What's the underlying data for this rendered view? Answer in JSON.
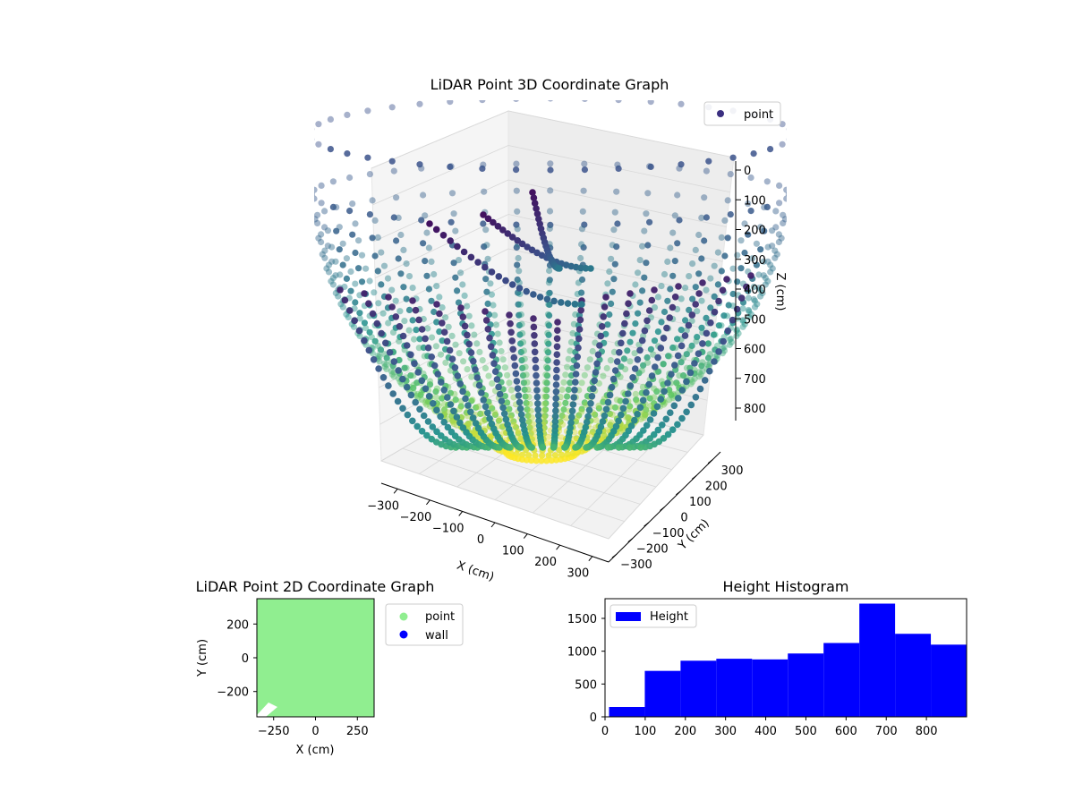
{
  "chart_data": [
    {
      "type": "scatter",
      "title": "LiDAR Point 3D Coordinate Graph",
      "xlabel": "X (cm)",
      "ylabel": "Y (cm)",
      "zlabel": "Z (cm)",
      "x_ticks": [
        "−300",
        "−200",
        "−100",
        "0",
        "100",
        "200",
        "300"
      ],
      "y_ticks": [
        "−300",
        "−200",
        "−100",
        "0",
        "100",
        "200",
        "300"
      ],
      "z_ticks": [
        "0",
        "100",
        "200",
        "300",
        "400",
        "500",
        "600",
        "700",
        "800"
      ],
      "xlim": [
        -350,
        350
      ],
      "ylim": [
        -350,
        350
      ],
      "zlim": [
        0,
        890
      ],
      "z_inverted": true,
      "colormap": "viridis",
      "legend": [
        {
          "label": "point",
          "color": "#3b2f80"
        }
      ],
      "legend_position": "top-right",
      "grid": true
    },
    {
      "type": "scatter",
      "title": "LiDAR Point 2D Coordinate Graph",
      "xlabel": "X (cm)",
      "ylabel": "Y (cm)",
      "x_ticks": [
        "−250",
        "0",
        "250"
      ],
      "y_ticks": [
        "200",
        "0",
        "−200"
      ],
      "xlim": [
        -350,
        350
      ],
      "ylim": [
        -350,
        350
      ],
      "legend": [
        {
          "label": "point",
          "color": "#90ee90"
        },
        {
          "label": "wall",
          "color": "#0000ff"
        }
      ],
      "legend_position": "outside right",
      "fill_color": "#90ee90"
    },
    {
      "type": "bar",
      "title": "Height Histogram",
      "legend": [
        {
          "label": "Height",
          "color": "#0000ff"
        }
      ],
      "legend_position": "top-left",
      "bar_color": "#0000ff",
      "bin_edges": [
        10,
        99,
        188,
        277,
        366,
        455,
        544,
        633,
        722,
        811,
        900
      ],
      "values": [
        150,
        700,
        855,
        885,
        875,
        965,
        1125,
        1725,
        1265,
        1100
      ],
      "xlim": [
        0,
        900
      ],
      "ylim": [
        0,
        1800
      ],
      "x_ticks": [
        "0",
        "100",
        "200",
        "300",
        "400",
        "500",
        "600",
        "700",
        "800"
      ],
      "y_ticks": [
        "0",
        "500",
        "1000",
        "1500"
      ]
    }
  ]
}
